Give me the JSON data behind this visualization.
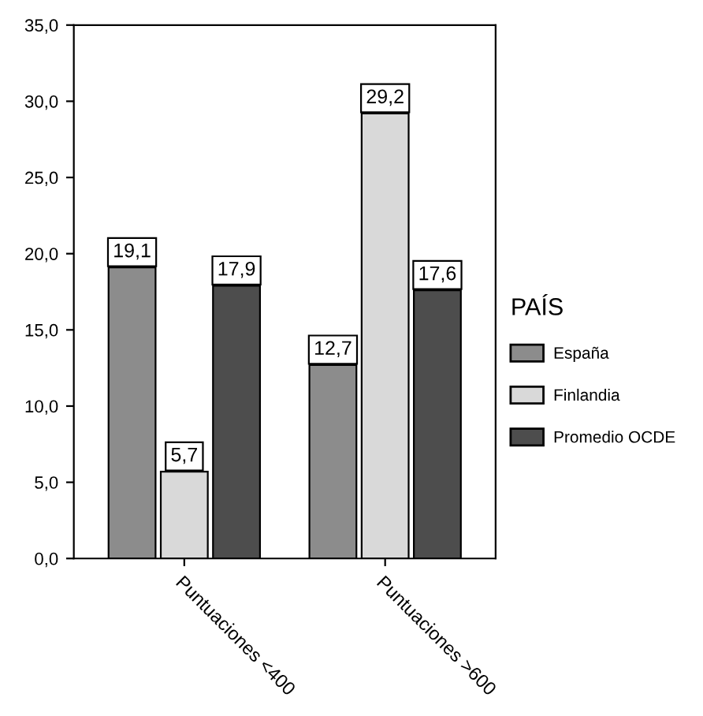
{
  "chart_data": {
    "type": "bar",
    "categories": [
      "Puntuaciones <400",
      "Puntuaciones >600"
    ],
    "series": [
      {
        "name": "España",
        "color": "#8c8c8c",
        "values": [
          19.1,
          12.7
        ],
        "value_labels": [
          "19,1",
          "12,7"
        ]
      },
      {
        "name": "Finlandia",
        "color": "#d9d9d9",
        "values": [
          5.7,
          29.2
        ],
        "value_labels": [
          "5,7",
          "29,2"
        ]
      },
      {
        "name": "Promedio OCDE",
        "color": "#4d4d4d",
        "values": [
          17.9,
          17.6
        ],
        "value_labels": [
          "17,9",
          "17,6"
        ]
      }
    ],
    "ylim": [
      0,
      35
    ],
    "yticks": [
      {
        "value": 0,
        "label": "0,0"
      },
      {
        "value": 5,
        "label": "5,0"
      },
      {
        "value": 10,
        "label": "10,0"
      },
      {
        "value": 15,
        "label": "15,0"
      },
      {
        "value": 20,
        "label": "20,0"
      },
      {
        "value": 25,
        "label": "25,0"
      },
      {
        "value": 30,
        "label": "30,0"
      },
      {
        "value": 35,
        "label": "35,0"
      }
    ],
    "legend_title": "PAÍS",
    "legend": "right",
    "grid": false
  }
}
